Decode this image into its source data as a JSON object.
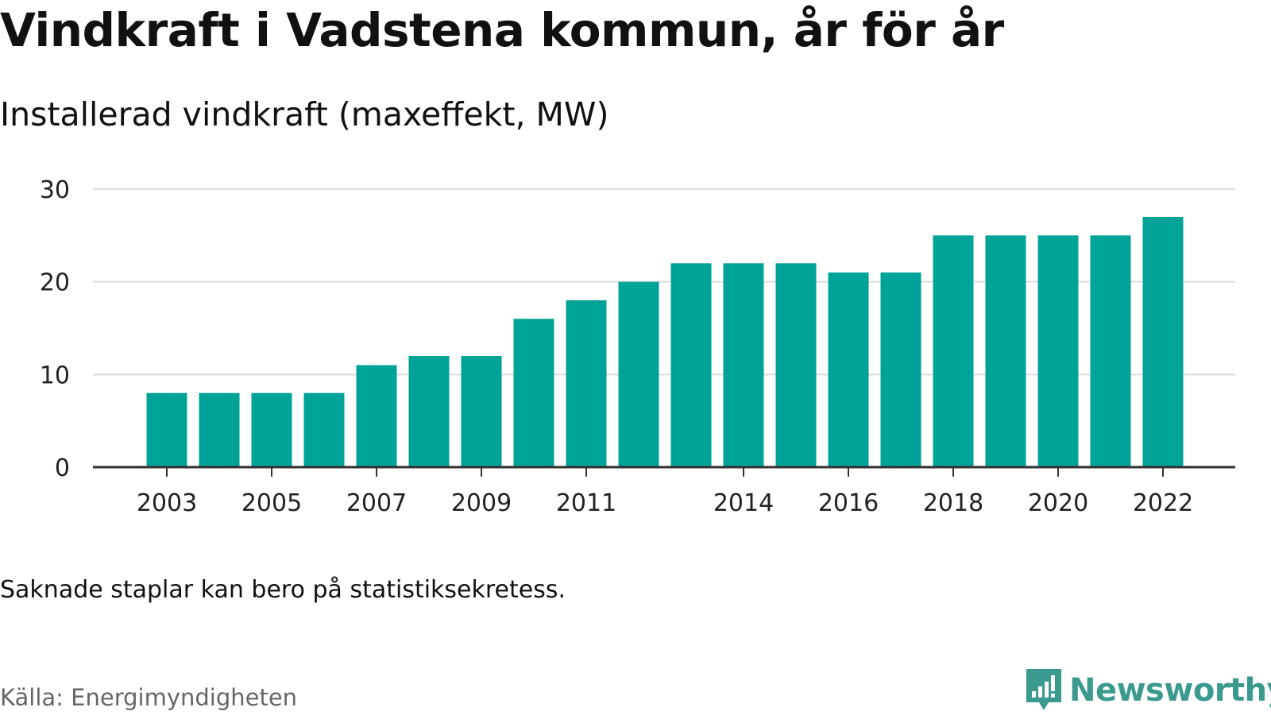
{
  "title": "Vindkraft i Vadstena kommun, år för år",
  "subtitle": "Installerad vindkraft (maxeffekt, MW)",
  "note": "Saknade staplar kan bero på statistiksekretess.",
  "source": "Källa: Energimyndigheten",
  "brand": {
    "name": "Newsworthy",
    "color": "#3a9a8e",
    "icon": "newsworthy-logo-icon"
  },
  "chart_data": {
    "type": "bar",
    "title": "Vindkraft i Vadstena kommun, år för år",
    "subtitle": "Installerad vindkraft (maxeffekt, MW)",
    "xlabel": "",
    "ylabel": "",
    "categories": [
      "2003",
      "2004",
      "2005",
      "2006",
      "2007",
      "2008",
      "2009",
      "2010",
      "2011",
      "2012",
      "2013",
      "2014",
      "2015",
      "2016",
      "2017",
      "2018",
      "2019",
      "2020",
      "2021",
      "2022"
    ],
    "values": [
      8,
      8,
      8,
      8,
      11,
      12,
      12,
      16,
      18,
      20,
      22,
      22,
      22,
      21,
      21,
      25,
      25,
      25,
      25,
      27
    ],
    "x_tick_labels": [
      "2003",
      "2005",
      "2007",
      "2009",
      "2011",
      "2014",
      "2016",
      "2018",
      "2020",
      "2022"
    ],
    "y_ticks": [
      0,
      10,
      20,
      30
    ],
    "ylim": [
      0,
      30
    ],
    "grid": true,
    "bar_color": "#00a398",
    "grid_color": "#dddddd",
    "axis_color": "#333333"
  }
}
